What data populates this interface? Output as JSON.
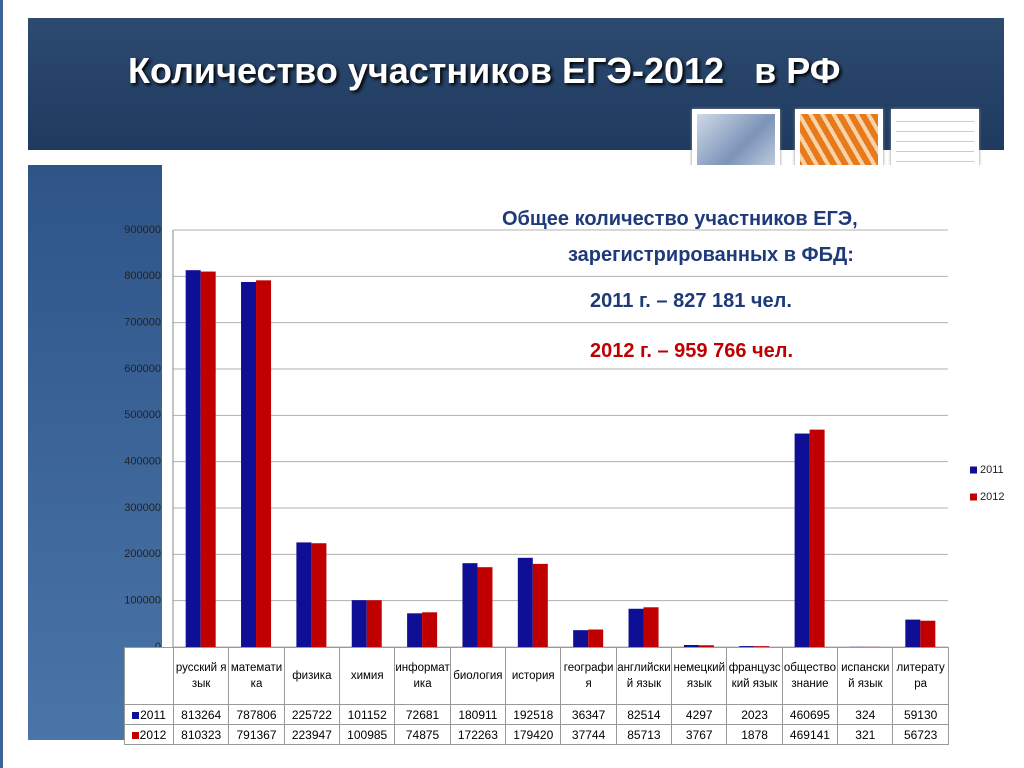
{
  "title": "Количество участников ЕГЭ-2012   в РФ",
  "info": {
    "line1": "Общее количество участников ЕГЭ,",
    "line2": "зарегистрированных в ФБД:",
    "y2011": "2011 г. – 827 181 чел.",
    "y2012": "2012 г. – 959 766 чел."
  },
  "chart_data": {
    "type": "bar",
    "categories": [
      "русский язык",
      "математика",
      "физика",
      "химия",
      "информатика",
      "биология",
      "история",
      "география",
      "английский язык",
      "немецкий язык",
      "французский язык",
      "обществознание",
      "испанский язык",
      "литература"
    ],
    "series": [
      {
        "name": "2011",
        "color": "#0f0f96",
        "values": [
          813264,
          787806,
          225722,
          101152,
          72681,
          180911,
          192518,
          36347,
          82514,
          4297,
          2023,
          460695,
          324,
          59130
        ]
      },
      {
        "name": "2012",
        "color": "#c00000",
        "values": [
          810323,
          791367,
          223947,
          100985,
          74875,
          172263,
          179420,
          37744,
          85713,
          3767,
          1878,
          469141,
          321,
          56723
        ]
      }
    ],
    "ylim": [
      0,
      900000
    ],
    "yticks": [
      0,
      100000,
      200000,
      300000,
      400000,
      500000,
      600000,
      700000,
      800000,
      900000
    ],
    "grid": true,
    "legend": "right"
  }
}
